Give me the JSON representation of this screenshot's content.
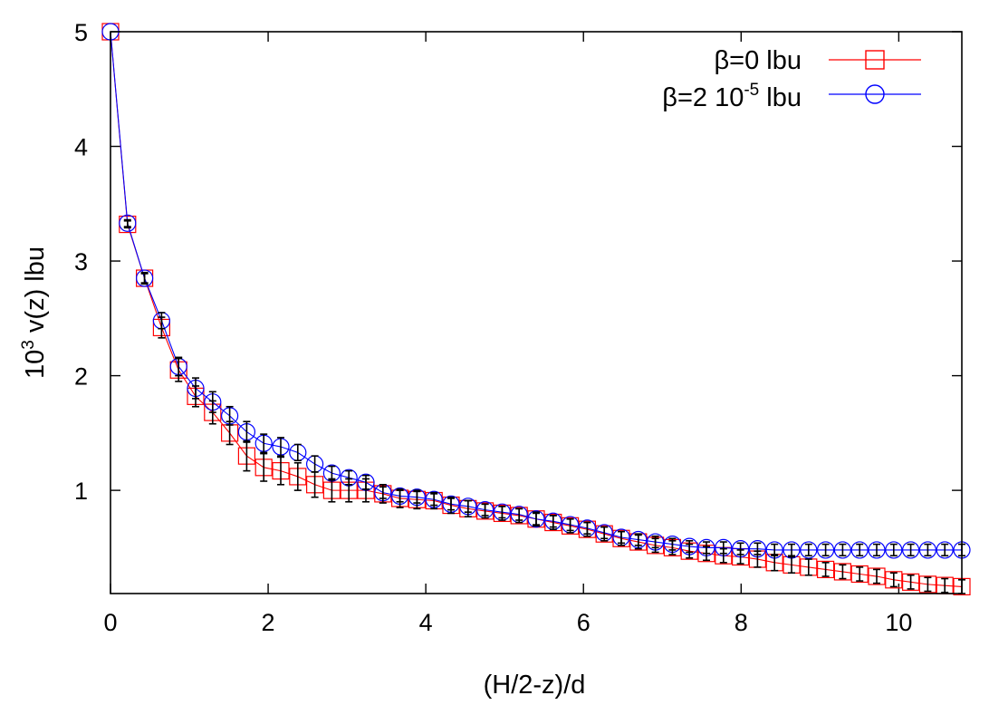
{
  "chart_data": {
    "type": "line",
    "xlabel": "(H/2-z)/d",
    "ylabel_main": "10",
    "ylabel_sup": "3",
    "ylabel_rest": " v(z) lbu",
    "xlim": [
      0,
      10.8
    ],
    "ylim": [
      0.1,
      5
    ],
    "xticks": [
      0,
      2,
      4,
      6,
      8,
      10
    ],
    "yticks": [
      1,
      2,
      3,
      4,
      5
    ],
    "legend_position": "top-right",
    "grid": false,
    "x": [
      0,
      0.216,
      0.432,
      0.648,
      0.864,
      1.08,
      1.296,
      1.512,
      1.728,
      1.944,
      2.16,
      2.376,
      2.592,
      2.808,
      3.024,
      3.24,
      3.456,
      3.672,
      3.888,
      4.104,
      4.32,
      4.536,
      4.752,
      4.968,
      5.184,
      5.4,
      5.616,
      5.832,
      6.048,
      6.264,
      6.48,
      6.696,
      6.912,
      7.128,
      7.344,
      7.56,
      7.776,
      7.992,
      8.208,
      8.424,
      8.64,
      8.856,
      9.072,
      9.288,
      9.504,
      9.72,
      9.936,
      10.152,
      10.368,
      10.584,
      10.8
    ],
    "series": [
      {
        "name_main": "β=0 lbu",
        "name_sup": "",
        "name_rest": "",
        "color": "#ff0000",
        "marker": "square",
        "values": [
          5.0,
          3.32,
          2.85,
          2.42,
          2.05,
          1.82,
          1.68,
          1.5,
          1.3,
          1.2,
          1.17,
          1.12,
          1.05,
          1.0,
          1.0,
          1.0,
          0.97,
          0.93,
          0.92,
          0.91,
          0.87,
          0.84,
          0.82,
          0.8,
          0.78,
          0.75,
          0.72,
          0.69,
          0.66,
          0.62,
          0.58,
          0.55,
          0.52,
          0.5,
          0.47,
          0.45,
          0.43,
          0.42,
          0.4,
          0.37,
          0.35,
          0.33,
          0.31,
          0.29,
          0.27,
          0.25,
          0.22,
          0.2,
          0.18,
          0.17,
          0.16
        ],
        "errors": [
          0,
          0.03,
          0.05,
          0.09,
          0.1,
          0.09,
          0.1,
          0.1,
          0.13,
          0.12,
          0.12,
          0.12,
          0.11,
          0.1,
          0.1,
          0.1,
          0.08,
          0.08,
          0.08,
          0.07,
          0.07,
          0.07,
          0.06,
          0.06,
          0.06,
          0.06,
          0.06,
          0.06,
          0.06,
          0.06,
          0.06,
          0.06,
          0.06,
          0.06,
          0.06,
          0.06,
          0.06,
          0.06,
          0.07,
          0.07,
          0.07,
          0.07,
          0.06,
          0.06,
          0.06,
          0.06,
          0.06,
          0.06,
          0.06,
          0.06,
          0.06
        ]
      },
      {
        "name_main": "β=2 10",
        "name_sup": "-5",
        "name_rest": " lbu",
        "color": "#0000ff",
        "marker": "circle",
        "values": [
          5.0,
          3.33,
          2.85,
          2.48,
          2.08,
          1.89,
          1.77,
          1.65,
          1.51,
          1.41,
          1.38,
          1.33,
          1.23,
          1.15,
          1.11,
          1.07,
          0.98,
          0.95,
          0.94,
          0.92,
          0.88,
          0.86,
          0.83,
          0.81,
          0.79,
          0.75,
          0.73,
          0.7,
          0.67,
          0.63,
          0.59,
          0.57,
          0.55,
          0.53,
          0.51,
          0.5,
          0.5,
          0.49,
          0.49,
          0.48,
          0.48,
          0.48,
          0.48,
          0.48,
          0.48,
          0.48,
          0.48,
          0.48,
          0.48,
          0.48,
          0.48
        ],
        "errors": [
          0,
          0.03,
          0.04,
          0.07,
          0.08,
          0.09,
          0.09,
          0.08,
          0.09,
          0.08,
          0.08,
          0.07,
          0.07,
          0.06,
          0.06,
          0.06,
          0.05,
          0.05,
          0.05,
          0.05,
          0.05,
          0.05,
          0.05,
          0.05,
          0.05,
          0.05,
          0.05,
          0.05,
          0.05,
          0.05,
          0.05,
          0.05,
          0.05,
          0.05,
          0.05,
          0.05,
          0.05,
          0.05,
          0.05,
          0.05,
          0.05,
          0.05,
          0.05,
          0.05,
          0.05,
          0.05,
          0.05,
          0.05,
          0.05,
          0.05,
          0.05
        ]
      }
    ]
  }
}
